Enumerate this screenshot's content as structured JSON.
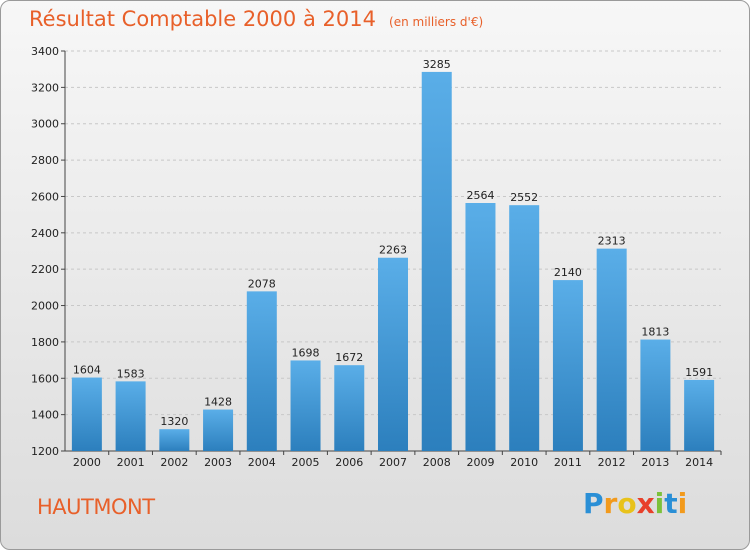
{
  "chart_data": {
    "type": "bar",
    "title": "Résultat Comptable 2000 à 2014",
    "subtitle": "(en milliers d'€)",
    "categories": [
      "2000",
      "2001",
      "2002",
      "2003",
      "2004",
      "2005",
      "2006",
      "2007",
      "2008",
      "2009",
      "2010",
      "2011",
      "2012",
      "2013",
      "2014"
    ],
    "values": [
      1604,
      1583,
      1320,
      1428,
      2078,
      1698,
      1672,
      2263,
      3285,
      2564,
      2552,
      2140,
      2313,
      1813,
      1591
    ],
    "ylim": [
      1200,
      3400
    ],
    "yticks": [
      1200,
      1400,
      1600,
      1800,
      2000,
      2200,
      2400,
      2600,
      2800,
      3000,
      3200,
      3400
    ],
    "xlabel": "",
    "ylabel": "",
    "grid": true,
    "colors": {
      "bar_light": "#5aaee8",
      "bar_dark": "#2c7fbd",
      "title": "#e8602a",
      "grid": "#c8c8c8"
    }
  },
  "footer": {
    "commune": "HAUTMONT",
    "logo": {
      "text": "Proxiti",
      "letters": [
        {
          "ch": "P",
          "color": "#2a8fd6"
        },
        {
          "ch": "r",
          "color": "#f29a1c"
        },
        {
          "ch": "o",
          "color": "#e8c21a"
        },
        {
          "ch": "x",
          "color": "#e8402a"
        },
        {
          "ch": "i",
          "color": "#7cc13a"
        },
        {
          "ch": "t",
          "color": "#2a8fd6"
        },
        {
          "ch": "i",
          "color": "#f29a1c"
        }
      ]
    }
  }
}
